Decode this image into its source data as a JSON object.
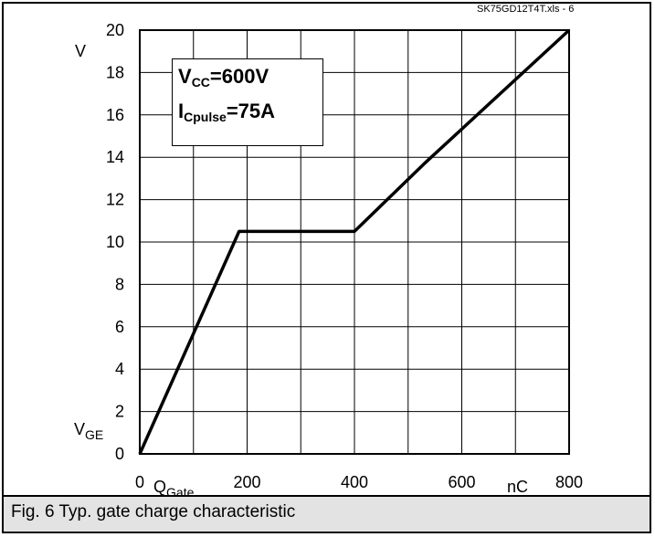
{
  "caption": "Fig. 6 Typ. gate charge characteristic",
  "file_label": "SK75GD12T4T.xls - 6",
  "annotations": {
    "line1_main": "V",
    "line1_sub": "CC",
    "line1_value": "=600V",
    "line2_main": "I",
    "line2_sub": "Cpulse",
    "line2_value": "=75A"
  },
  "axis_labels": {
    "y_unit": "V",
    "y_name_main": "V",
    "y_name_sub": "GE",
    "x_name_main": "Q",
    "x_name_sub": "Gate",
    "x_unit": "nC"
  },
  "chart_data": {
    "type": "line",
    "title": "",
    "xlabel": "Q_Gate (nC)",
    "ylabel": "V_GE (V)",
    "xlim": [
      0,
      800
    ],
    "ylim": [
      0,
      20
    ],
    "grid": true,
    "x_ticks": [
      0,
      200,
      400,
      600,
      800
    ],
    "y_ticks": [
      0,
      2,
      4,
      6,
      8,
      10,
      12,
      14,
      16,
      18,
      20
    ],
    "series": [
      {
        "x": [
          0,
          185,
          400,
          530,
          800
        ],
        "y": [
          0,
          10.5,
          10.5,
          13.7,
          20
        ]
      }
    ]
  }
}
